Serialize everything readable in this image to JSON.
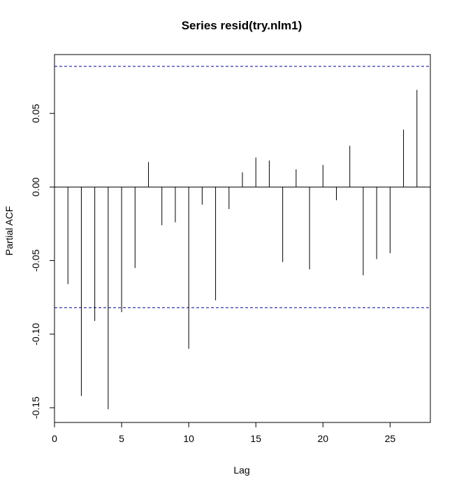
{
  "chart_data": {
    "type": "bar",
    "title": "Series  resid(try.nlm1)",
    "xlabel": "Lag",
    "ylabel": "Partial ACF",
    "xlim": [
      0,
      28
    ],
    "ylim": [
      -0.16,
      0.09
    ],
    "xticks": [
      {
        "value": 0,
        "label": "0"
      },
      {
        "value": 5,
        "label": "5"
      },
      {
        "value": 10,
        "label": "10"
      },
      {
        "value": 15,
        "label": "15"
      },
      {
        "value": 20,
        "label": "20"
      },
      {
        "value": 25,
        "label": "25"
      }
    ],
    "yticks": [
      {
        "value": -0.15,
        "label": "-0.15"
      },
      {
        "value": -0.1,
        "label": "-0.10"
      },
      {
        "value": -0.05,
        "label": "-0.05"
      },
      {
        "value": 0.0,
        "label": "0.00"
      },
      {
        "value": 0.05,
        "label": "0.05"
      }
    ],
    "confidence_bounds": [
      0.082,
      -0.082
    ],
    "grid": false,
    "lags": [
      1,
      2,
      3,
      4,
      5,
      6,
      7,
      8,
      9,
      10,
      11,
      12,
      13,
      14,
      15,
      16,
      17,
      18,
      19,
      20,
      21,
      22,
      23,
      24,
      25,
      26,
      27
    ],
    "values": [
      -0.066,
      -0.142,
      -0.091,
      -0.151,
      -0.085,
      -0.055,
      0.017,
      -0.026,
      -0.024,
      -0.11,
      -0.012,
      -0.077,
      -0.015,
      0.01,
      0.02,
      0.018,
      -0.051,
      0.012,
      -0.056,
      0.015,
      -0.009,
      0.028,
      -0.06,
      -0.049,
      -0.045,
      0.039,
      0.066
    ],
    "colors": {
      "bars": "#000000",
      "bounds": "#00008B",
      "axis": "#000000"
    }
  }
}
